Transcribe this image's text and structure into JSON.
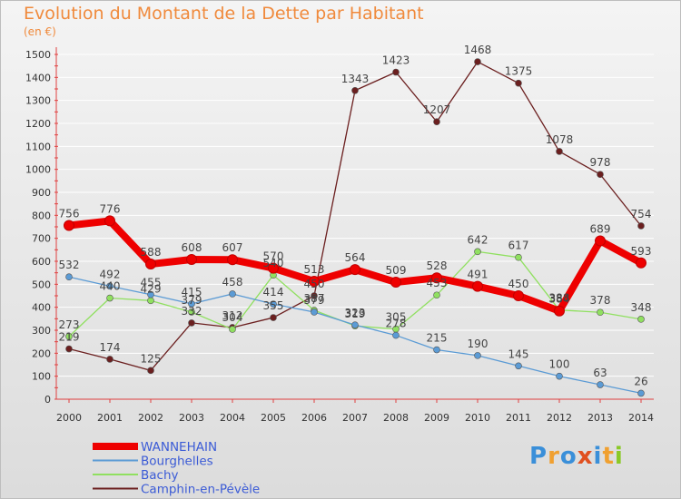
{
  "title": "Evolution du Montant de la Dette par Habitant",
  "subtitle": "(en €)",
  "logo": "Proxiti",
  "chart_data": {
    "type": "line",
    "title": "Evolution du Montant de la Dette par Habitant",
    "ylabel": "(en €)",
    "ylim": [
      0,
      1500
    ],
    "yticks": [
      0,
      100,
      200,
      300,
      400,
      500,
      600,
      700,
      800,
      900,
      1000,
      1100,
      1200,
      1300,
      1400,
      1500
    ],
    "categories": [
      "2000",
      "2001",
      "2002",
      "2003",
      "2004",
      "2005",
      "2006",
      "2007",
      "2008",
      "2009",
      "2010",
      "2011",
      "2012",
      "2013",
      "2014"
    ],
    "grid": "horizontal",
    "legend": "bottom-left",
    "series": [
      {
        "name": "WANNEHAIN",
        "color": "#ee0000",
        "values": [
          756,
          776,
          588,
          608,
          607,
          570,
          513,
          564,
          509,
          528,
          491,
          450,
          384,
          689,
          593
        ]
      },
      {
        "name": "Bourghelles",
        "color": "#5b9bd5",
        "values": [
          532,
          492,
          455,
          415,
          458,
          414,
          379,
          323,
          278,
          215,
          190,
          145,
          100,
          63,
          26
        ]
      },
      {
        "name": "Bachy",
        "color": "#90e060",
        "values": [
          273,
          440,
          429,
          379,
          304,
          540,
          387,
          319,
          305,
          453,
          642,
          617,
          388,
          378,
          348
        ]
      },
      {
        "name": "Camphin-en-Pévèle",
        "color": "#6b1f1f",
        "values": [
          219,
          174,
          125,
          332,
          312,
          355,
          450,
          1343,
          1423,
          1207,
          1468,
          1375,
          1078,
          978,
          754
        ]
      }
    ]
  }
}
